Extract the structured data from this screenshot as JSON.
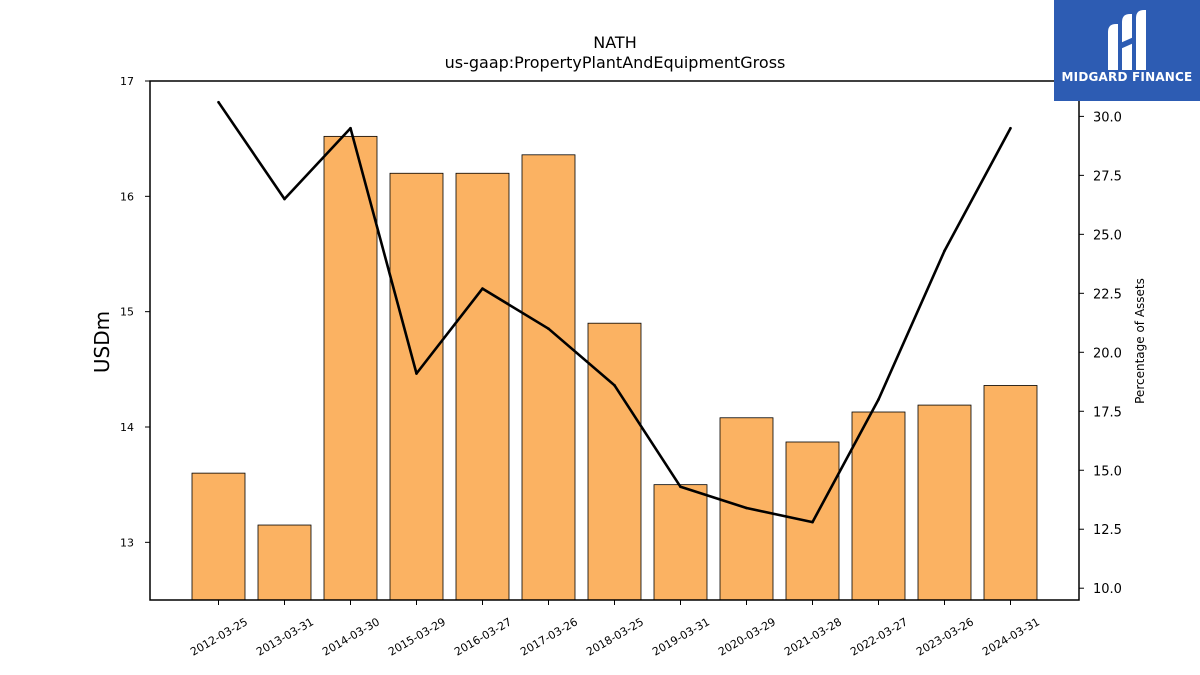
{
  "chart_data": {
    "type": "bar+line",
    "title": "NATH",
    "subtitle": "us-gaap:PropertyPlantAndEquipmentGross",
    "ylabel": "USDm",
    "y2label": "Percentage of Assets",
    "categories": [
      "2012-03-25",
      "2013-03-31",
      "2014-03-30",
      "2015-03-29",
      "2016-03-27",
      "2017-03-26",
      "2018-03-25",
      "2019-03-31",
      "2020-03-29",
      "2021-03-28",
      "2022-03-27",
      "2023-03-26",
      "2024-03-31"
    ],
    "series": [
      {
        "type": "bar",
        "axis": "left",
        "values": [
          13.6,
          13.15,
          16.52,
          16.2,
          16.2,
          16.36,
          14.9,
          13.5,
          14.08,
          13.87,
          14.13,
          14.19,
          14.36
        ]
      },
      {
        "type": "line",
        "axis": "right",
        "values": [
          30.6,
          26.5,
          29.5,
          19.1,
          22.7,
          21.0,
          18.6,
          14.3,
          13.4,
          12.8,
          18.0,
          24.3,
          29.5
        ]
      }
    ],
    "ylim": [
      12.5,
      17.0
    ],
    "y2lim": [
      9.5,
      31.5
    ],
    "yticks": [
      "13",
      "14",
      "15",
      "16",
      "17"
    ],
    "y2ticks": [
      "10.0",
      "12.5",
      "15.0",
      "17.5",
      "20.0",
      "22.5",
      "25.0",
      "27.5",
      "30.0"
    ],
    "grid": false,
    "legend": "none",
    "colors": {
      "bar_fill": "#fbb262",
      "bar_edge": "#000000",
      "line": "#000000"
    }
  },
  "logo": {
    "brand": "MIDGARD FINANCE",
    "background": "#2d5cb3"
  }
}
